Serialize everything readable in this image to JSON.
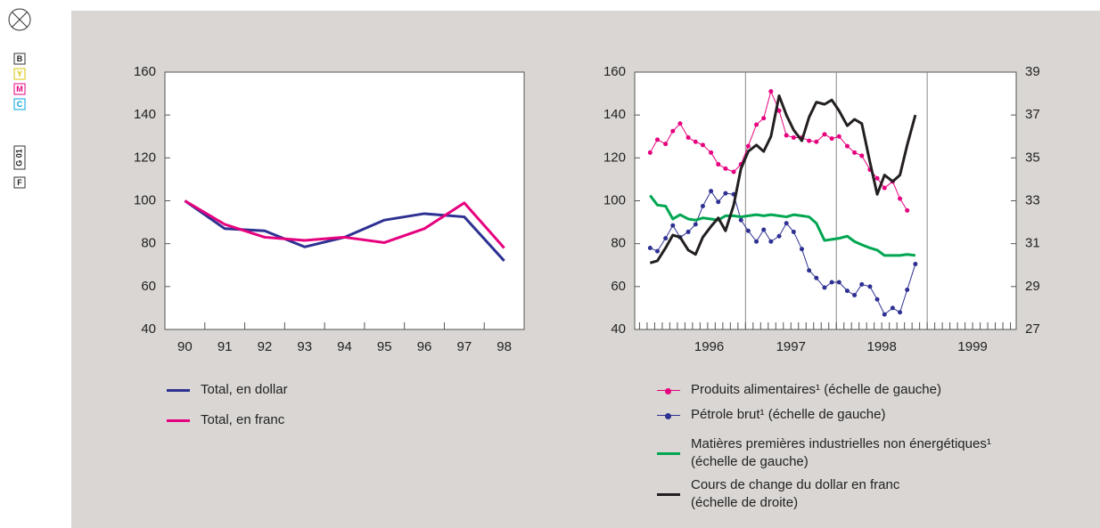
{
  "print_marks": [
    "B",
    "Y",
    "M",
    "C",
    "G 01",
    "F"
  ],
  "chart_data": [
    {
      "type": "line",
      "categories": [
        "90",
        "91",
        "92",
        "93",
        "94",
        "95",
        "96",
        "97",
        "98"
      ],
      "ylim": [
        40,
        160
      ],
      "yticks": [
        40,
        60,
        80,
        100,
        120,
        140,
        160
      ],
      "series": [
        {
          "name": "Total, en dollar",
          "color": "#2e3192",
          "values": [
            100,
            87,
            86,
            78.5,
            83,
            91,
            94,
            92.5,
            72
          ]
        },
        {
          "name": "Total, en franc",
          "color": "#e6007e",
          "values": [
            100,
            89,
            83,
            81.5,
            83,
            80.5,
            87,
            99,
            78
          ]
        }
      ]
    },
    {
      "type": "line",
      "x": [
        1995.95,
        1996.03,
        1996.12,
        1996.2,
        1996.28,
        1996.37,
        1996.45,
        1996.53,
        1996.62,
        1996.7,
        1996.78,
        1996.87,
        1996.95,
        1997.03,
        1997.12,
        1997.2,
        1997.28,
        1997.37,
        1997.45,
        1997.53,
        1997.62,
        1997.7,
        1997.78,
        1997.87,
        1997.95,
        1998.03,
        1998.12,
        1998.2,
        1998.28,
        1998.37,
        1998.45,
        1998.53,
        1998.62,
        1998.7,
        1998.78,
        1998.87
      ],
      "xlim": [
        1995.78,
        1999.98
      ],
      "xticks": [
        {
          "value": 1996.6,
          "label": "1996"
        },
        {
          "value": 1997.5,
          "label": "1997"
        },
        {
          "value": 1998.5,
          "label": "1998"
        },
        {
          "value": 1999.5,
          "label": "1999"
        }
      ],
      "xgrid_lines": [
        1997,
        1998,
        1999
      ],
      "ylim": [
        40,
        160
      ],
      "yticks": [
        40,
        60,
        80,
        100,
        120,
        140,
        160
      ],
      "y2lim": [
        27,
        39
      ],
      "y2ticks": [
        27,
        29,
        31,
        33,
        35,
        37,
        39
      ],
      "series": [
        {
          "name": "Produits alimentaires¹ (échelle de gauche)",
          "color": "#e6007e",
          "marker": true,
          "values": [
            122.5,
            128.5,
            126.5,
            132.5,
            136,
            129.5,
            127.5,
            126,
            122.5,
            117,
            115,
            113.5,
            117,
            125.5,
            135.5,
            138.5,
            151,
            142,
            130.5,
            129.5,
            129.5,
            128,
            127.5,
            131,
            129,
            130,
            125.5,
            122.5,
            121,
            114.5,
            110.5,
            106,
            109,
            101,
            95.5,
            null
          ]
        },
        {
          "name": "Pétrole brut¹ (échelle de gauche)",
          "color": "#2e3192",
          "marker": true,
          "values": [
            78,
            76.5,
            82.5,
            88.5,
            83,
            85.5,
            89,
            97.5,
            104.5,
            99.5,
            103.5,
            103,
            91,
            86,
            81,
            86.5,
            81,
            83.5,
            89.5,
            85.5,
            77.5,
            67.5,
            64,
            59.5,
            62,
            62,
            58,
            56,
            61,
            60,
            54,
            47,
            50,
            48,
            58.5,
            70.5
          ]
        },
        {
          "name": "Matières premières industrielles non énergétiques¹\n(échelle de gauche)",
          "color": "#00a651",
          "marker": false,
          "values": [
            102.5,
            98,
            97.5,
            91.5,
            93.5,
            91.5,
            91,
            92,
            91.5,
            91,
            93,
            93,
            92.5,
            93,
            93.5,
            93,
            93.5,
            93,
            92.5,
            93.5,
            93,
            92.5,
            89.5,
            81.5,
            82,
            82.5,
            83.5,
            81,
            79.5,
            78,
            77,
            74.5,
            74.5,
            74.5,
            75,
            74.5
          ]
        },
        {
          "name": "Cours de change du dollar en franc\n(échelle de droite)",
          "color": "#231f20",
          "marker": false,
          "axis": "y2",
          "values": [
            30.1,
            30.2,
            30.8,
            31.4,
            31.3,
            30.7,
            30.5,
            31.3,
            31.8,
            32.2,
            31.6,
            32.8,
            34.5,
            35.3,
            35.6,
            35.3,
            36.0,
            37.9,
            37.0,
            36.3,
            35.8,
            36.9,
            37.6,
            37.5,
            37.7,
            37.2,
            36.5,
            36.8,
            36.6,
            34.8,
            33.3,
            34.2,
            33.9,
            34.2,
            35.6,
            37.0
          ]
        }
      ]
    }
  ]
}
